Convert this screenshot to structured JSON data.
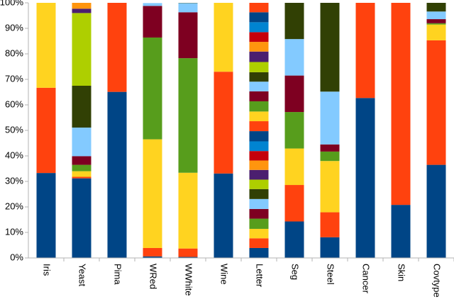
{
  "chart_data": {
    "type": "stacked-bar-100",
    "categories": [
      "Iris",
      "Yeast",
      "Pima",
      "WRed",
      "WWhite",
      "Wine",
      "Letter",
      "Seg",
      "Steel",
      "Cancer",
      "Skin",
      "Covtype"
    ],
    "colors": [
      "#004586",
      "#ff420e",
      "#ffd320",
      "#579d1c",
      "#7e0021",
      "#83caff",
      "#314004",
      "#aecf00",
      "#4b1f6f",
      "#ff950e",
      "#c5000b",
      "#0084d1"
    ],
    "values": [
      [
        33.3,
        33.4,
        33.3
      ],
      [
        31.2,
        0.6,
        2.2,
        2.5,
        3.4,
        11.2,
        16.4,
        28.5,
        1.7,
        2.3
      ],
      [
        65.1,
        34.9
      ],
      [
        0.6,
        3.3,
        42.6,
        39.9,
        12.4,
        1.1
      ],
      [
        0.4,
        3.3,
        29.7,
        44.9,
        18.0,
        3.6,
        0.1
      ],
      [
        33.1,
        39.9,
        27.0
      ],
      [
        3.9,
        3.8,
        3.7,
        4.0,
        3.8,
        3.9,
        3.9,
        3.7,
        3.8,
        3.7,
        3.7,
        3.8,
        4.0,
        3.9,
        3.8,
        4.0,
        3.9,
        3.8,
        3.7,
        4.0,
        4.1,
        3.8,
        3.8,
        3.9,
        3.9,
        3.7
      ],
      [
        14.3,
        14.3,
        14.3,
        14.3,
        14.3,
        14.3,
        14.2
      ],
      [
        8.1,
        9.8,
        20.1,
        3.7,
        2.8,
        20.7,
        34.8
      ],
      [
        62.7,
        37.3
      ],
      [
        20.8,
        79.2
      ],
      [
        36.5,
        48.8,
        6.2,
        0.5,
        1.6,
        3.0,
        3.4
      ]
    ],
    "ylim": [
      0,
      100
    ],
    "yticks": [
      {
        "value": 0,
        "label": "0%"
      },
      {
        "value": 10,
        "label": "10%"
      },
      {
        "value": 20,
        "label": "20%"
      },
      {
        "value": 30,
        "label": "30%"
      },
      {
        "value": 40,
        "label": "40%"
      },
      {
        "value": 50,
        "label": "50%"
      },
      {
        "value": 60,
        "label": "60%"
      },
      {
        "value": 70,
        "label": "70%"
      },
      {
        "value": 80,
        "label": "80%"
      },
      {
        "value": 90,
        "label": "90%"
      },
      {
        "value": 100,
        "label": "100%"
      }
    ]
  }
}
